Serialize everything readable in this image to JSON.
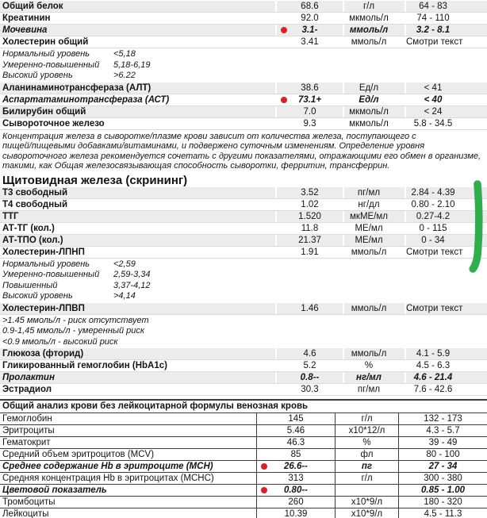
{
  "annotations": {
    "flag_dot_color": "#df1f26",
    "green_marker_color": "#2fae4e"
  },
  "colors": {
    "stripe": "#ececec",
    "row_rule": "#dcdcdc",
    "grid_border": "#3c3c3c"
  },
  "blocks": [
    {
      "kind": "rows",
      "rows": [
        {
          "name": "Общий белок",
          "value": "68.6",
          "units": "г/л",
          "range": "64 - 83",
          "flag": false,
          "emph": false,
          "shade": true
        },
        {
          "name": "Креатинин",
          "value": "92.0",
          "units": "мкмоль/л",
          "range": "74 - 110",
          "flag": false,
          "emph": false,
          "shade": false
        },
        {
          "name": "Мочевина",
          "value": "3.1-",
          "units": "ммоль/л",
          "range": "3.2 - 8.1",
          "flag": true,
          "emph": true,
          "shade": true
        },
        {
          "name": "Холестерин общий",
          "value": "3.41",
          "units": "ммоль/л",
          "range": "Смотри текст",
          "flag": false,
          "emph": false,
          "shade": false
        }
      ]
    },
    {
      "kind": "leveled_notes",
      "items": [
        {
          "label": "Нормальный уровень",
          "value": "<5,18"
        },
        {
          "label": "Умеренно-повышенный",
          "value": "5,18-6,19"
        },
        {
          "label": "Высокий уровень",
          "value": ">6.22"
        }
      ]
    },
    {
      "kind": "rows",
      "rows": [
        {
          "name": "Аланинаминотрансфераза (АЛТ)",
          "value": "38.6",
          "units": "Ед/л",
          "range": "< 41",
          "flag": false,
          "emph": false,
          "shade": true
        },
        {
          "name": "Аспартатаминотрансфераза (АСТ)",
          "value": "73.1+",
          "units": "Ед/л",
          "range": "< 40",
          "flag": true,
          "emph": true,
          "shade": false
        },
        {
          "name": "Билирубин общий",
          "value": "7.0",
          "units": "мкмоль/л",
          "range": "< 24",
          "flag": false,
          "emph": false,
          "shade": true
        },
        {
          "name": "Сывороточное железо",
          "value": "9.3",
          "units": "мкмоль/л",
          "range": "5.8 - 34.5",
          "flag": false,
          "emph": false,
          "shade": false
        }
      ]
    },
    {
      "kind": "paragraph",
      "lines": [
        "Концентрация железа в сыворотке/плазме крови зависит от количества железа, поступающего с",
        "пищей/пищевыми добавками/витаминами, и подвержено суточным изменениям. Определение уровня",
        "сывороточного железа рекомендуется сочетать с другими показателями, отражающими его обмен в организме,",
        "такими, как Общая железосвязывающая способность сыворотки, ферритин, трансферрин."
      ]
    },
    {
      "kind": "heading",
      "text": "Щитовидная железа (скрининг)"
    },
    {
      "kind": "rows",
      "rows": [
        {
          "name": "Т3 свободный",
          "value": "3.52",
          "units": "пг/мл",
          "range": "2.84 - 4.39",
          "flag": false,
          "emph": false,
          "shade": true
        },
        {
          "name": "Т4 свободный",
          "value": "1.02",
          "units": "нг/дл",
          "range": "0.80 - 2.10",
          "flag": false,
          "emph": false,
          "shade": false
        },
        {
          "name": "ТТГ",
          "value": "1.520",
          "units": "мкМЕ/мл",
          "range": "0.27-4.2",
          "flag": false,
          "emph": false,
          "shade": true
        },
        {
          "name": "АТ-ТГ (кол.)",
          "value": "11.8",
          "units": "МЕ/мл",
          "range": "0 - 115",
          "flag": false,
          "emph": false,
          "shade": false
        },
        {
          "name": "АТ-ТПО (кол.)",
          "value": "21.37",
          "units": "МЕ/мл",
          "range": "0 - 34",
          "flag": false,
          "emph": false,
          "shade": true
        },
        {
          "name": "Холестерин-ЛПНП",
          "value": "1.91",
          "units": "ммоль/л",
          "range": "Смотри текст",
          "flag": false,
          "emph": false,
          "shade": false
        }
      ]
    },
    {
      "kind": "leveled_notes",
      "items": [
        {
          "label": "Нормальный уровень",
          "value": "<2,59"
        },
        {
          "label": "Умеренно-повышенный",
          "value": "2,59-3,34"
        },
        {
          "label": "Повышенный",
          "value": "3,37-4,12"
        },
        {
          "label": "Высокий уровень",
          "value": ">4,14"
        }
      ]
    },
    {
      "kind": "rows",
      "rows": [
        {
          "name": "Холестерин-ЛПВП",
          "value": "1.46",
          "units": "ммоль/л",
          "range": "Смотри текст",
          "flag": false,
          "emph": false,
          "shade": true
        }
      ]
    },
    {
      "kind": "plain_notes",
      "lines": [
        ">1.45 ммоль/л - риск отсутствует",
        "0.9-1,45 ммоль/л - умеренный риск",
        "<0.9 ммоль/л - высокий риск"
      ]
    },
    {
      "kind": "rows",
      "rows": [
        {
          "name": "Глюкоза (фторид)",
          "value": "4.6",
          "units": "ммоль/л",
          "range": "4.1 - 5.9",
          "flag": false,
          "emph": false,
          "shade": true
        },
        {
          "name": "Гликированный гемоглобин (HbA1c)",
          "value": "5.2",
          "units": "%",
          "range": "4.5 - 6.3",
          "flag": false,
          "emph": false,
          "shade": false
        },
        {
          "name": "Пролактин",
          "value": "0.8--",
          "units": "нг/мл",
          "range": "4.6 - 21.4",
          "flag": false,
          "emph": true,
          "shade": true
        },
        {
          "name": "Эстрадиол",
          "value": "30.3",
          "units": "пг/мл",
          "range": "7.6 - 42.6",
          "flag": false,
          "emph": false,
          "shade": false
        }
      ]
    },
    {
      "kind": "cbc",
      "header": "Общий анализ крови без лейкоцитарной формулы венозная кровь",
      "rows": [
        {
          "name": "Гемоглобин",
          "value": "145",
          "units": "г/л",
          "range": "132 - 173",
          "flag": false,
          "emph": false
        },
        {
          "name": "Эритроциты",
          "value": "5.46",
          "units": "х10*12/л",
          "range": "4.3 - 5.7",
          "flag": false,
          "emph": false
        },
        {
          "name": "Гематокрит",
          "value": "46.3",
          "units": "%",
          "range": "39 - 49",
          "flag": false,
          "emph": false
        },
        {
          "name": "Средний объем эритроцитов (MCV)",
          "value": "85",
          "units": "фл",
          "range": "80 - 100",
          "flag": false,
          "emph": false
        },
        {
          "name": "Среднее содержание Hb в эритроците (MCH)",
          "value": "26.6--",
          "units": "пг",
          "range": "27 - 34",
          "flag": true,
          "emph": true
        },
        {
          "name": "Средняя концентрация Hb в эритроцитах (MCHC)",
          "value": "313",
          "units": "г/л",
          "range": "300 - 380",
          "flag": false,
          "emph": false
        },
        {
          "name": "Цветовой показатель",
          "value": "0.80--",
          "units": "",
          "range": "0.85 - 1.00",
          "flag": true,
          "emph": true
        },
        {
          "name": "Тромбоциты",
          "value": "260",
          "units": "х10*9/л",
          "range": "180 - 320",
          "flag": false,
          "emph": false
        },
        {
          "name": "Лейкоциты",
          "value": "10.39",
          "units": "х10*9/л",
          "range": "4.5 - 11.3",
          "flag": false,
          "emph": false
        }
      ]
    }
  ]
}
